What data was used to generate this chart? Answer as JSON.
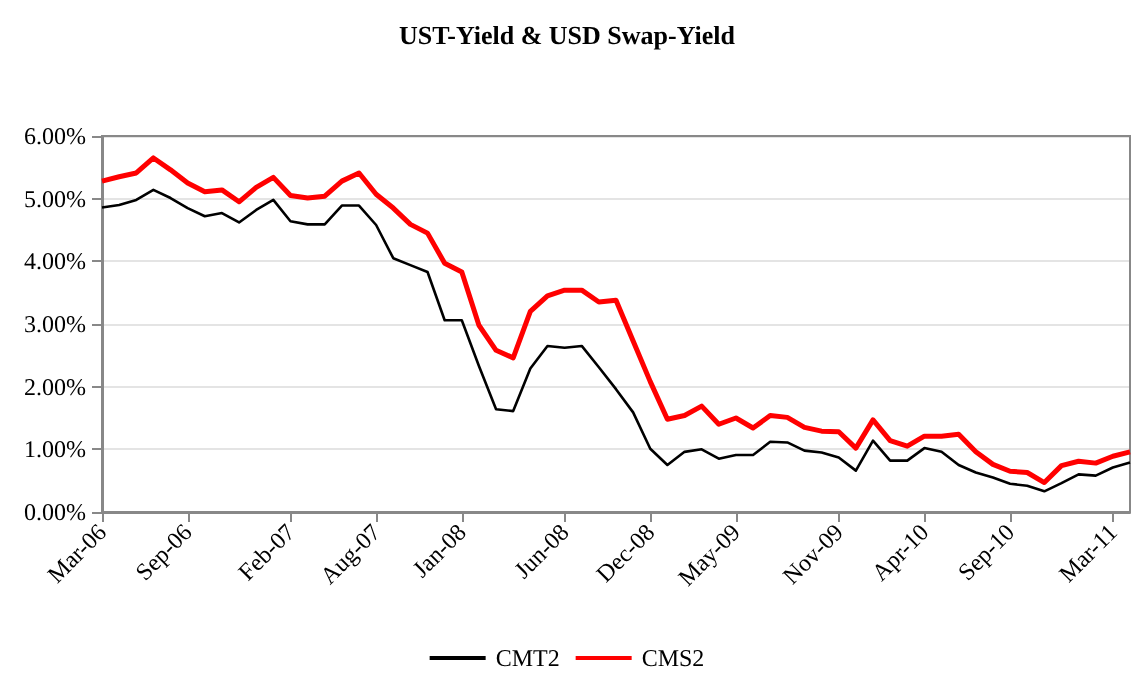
{
  "chart_data": {
    "type": "line",
    "title": "UST-Yield & USD Swap-Yield",
    "categories": [
      "Mar-06",
      null,
      null,
      null,
      null,
      "Sep-06",
      null,
      null,
      null,
      null,
      null,
      "Feb-07",
      null,
      null,
      null,
      null,
      "Aug-07",
      null,
      null,
      null,
      null,
      "Jan-08",
      null,
      null,
      null,
      null,
      null,
      "Jun-08",
      null,
      null,
      null,
      null,
      "Dec-08",
      null,
      null,
      null,
      null,
      "May-09",
      null,
      null,
      null,
      null,
      null,
      "Nov-09",
      null,
      null,
      null,
      null,
      "Apr-10",
      null,
      null,
      null,
      null,
      "Sep-10",
      null,
      null,
      null,
      null,
      null,
      "Mar-11",
      null
    ],
    "series": [
      {
        "name": "CMT2",
        "color": "#000000",
        "values": [
          4.86,
          4.9,
          4.98,
          5.14,
          5.01,
          4.85,
          4.72,
          4.77,
          4.62,
          4.82,
          4.98,
          4.64,
          4.59,
          4.59,
          4.89,
          4.89,
          4.58,
          4.05,
          3.94,
          3.83,
          3.06,
          3.06,
          2.33,
          1.64,
          1.61,
          2.29,
          2.65,
          2.62,
          2.65,
          2.31,
          1.96,
          1.59,
          1.01,
          0.75,
          0.96,
          1.0,
          0.85,
          0.91,
          0.91,
          1.12,
          1.11,
          0.98,
          0.95,
          0.87,
          0.66,
          1.14,
          0.82,
          0.82,
          1.02,
          0.96,
          0.75,
          0.63,
          0.55,
          0.45,
          0.42,
          0.33,
          0.46,
          0.6,
          0.58,
          0.71,
          0.79
        ]
      },
      {
        "name": "CMS2",
        "color": "#ff0000",
        "values": [
          5.28,
          5.35,
          5.41,
          5.65,
          5.46,
          5.25,
          5.11,
          5.14,
          4.95,
          5.18,
          5.34,
          5.05,
          5.01,
          5.04,
          5.28,
          5.41,
          5.07,
          4.85,
          4.59,
          4.45,
          3.97,
          3.83,
          2.98,
          2.58,
          2.46,
          3.2,
          3.45,
          3.54,
          3.54,
          3.35,
          3.38,
          2.73,
          2.08,
          1.48,
          1.54,
          1.69,
          1.4,
          1.5,
          1.34,
          1.54,
          1.51,
          1.35,
          1.29,
          1.28,
          1.02,
          1.47,
          1.14,
          1.05,
          1.21,
          1.21,
          1.24,
          0.96,
          0.76,
          0.65,
          0.63,
          0.47,
          0.74,
          0.81,
          0.78,
          0.89,
          0.96
        ]
      }
    ],
    "ylim": [
      0,
      6
    ],
    "yticks": [
      {
        "value": 0,
        "label": "0.00%"
      },
      {
        "value": 1,
        "label": "1.00%"
      },
      {
        "value": 2,
        "label": "2.00%"
      },
      {
        "value": 3,
        "label": "3.00%"
      },
      {
        "value": 4,
        "label": "4.00%"
      },
      {
        "value": 5,
        "label": "5.00%"
      },
      {
        "value": 6,
        "label": "6.00%"
      }
    ],
    "grid": "y",
    "legend": "bottom",
    "marker": "none",
    "line_style": "solid"
  }
}
